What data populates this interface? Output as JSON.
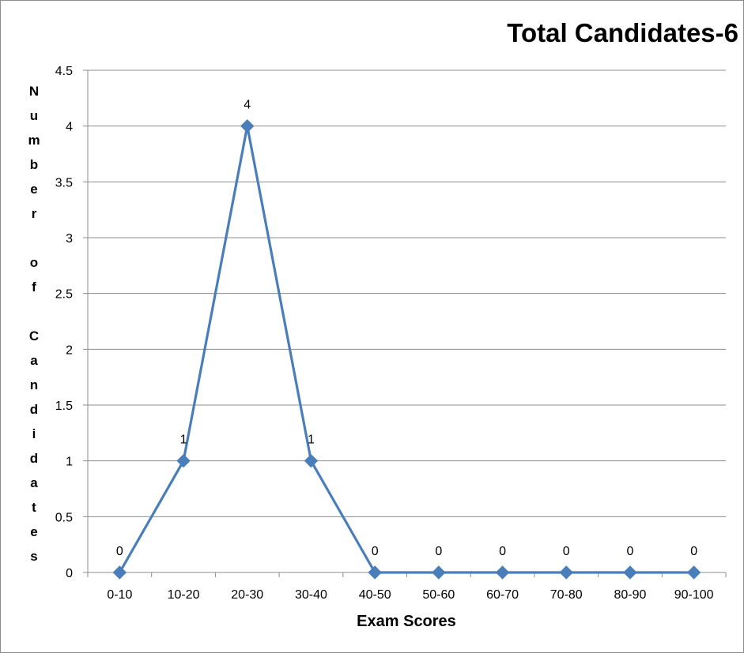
{
  "chart_data": {
    "type": "line",
    "title": "Total Candidates-6",
    "xlabel": "Exam Scores",
    "ylabel": "Number of Candidates",
    "categories": [
      "0-10",
      "10-20",
      "20-30",
      "30-40",
      "40-50",
      "50-60",
      "60-70",
      "70-80",
      "80-90",
      "90-100"
    ],
    "series": [
      {
        "values": [
          0,
          1,
          4,
          1,
          0,
          0,
          0,
          0,
          0,
          0
        ]
      }
    ],
    "data_labels": [
      "0",
      "1",
      "4",
      "1",
      "0",
      "0",
      "0",
      "0",
      "0",
      "0"
    ],
    "ylim": [
      0,
      4.5
    ],
    "yticks": [
      "0",
      "0.5",
      "1",
      "1.5",
      "2",
      "2.5",
      "3",
      "3.5",
      "4",
      "4.5"
    ],
    "grid": true,
    "legend": "none",
    "colors": {
      "series": "#4a7ebb",
      "grid": "#8c8c8c",
      "axis": "#8c8c8c"
    }
  }
}
